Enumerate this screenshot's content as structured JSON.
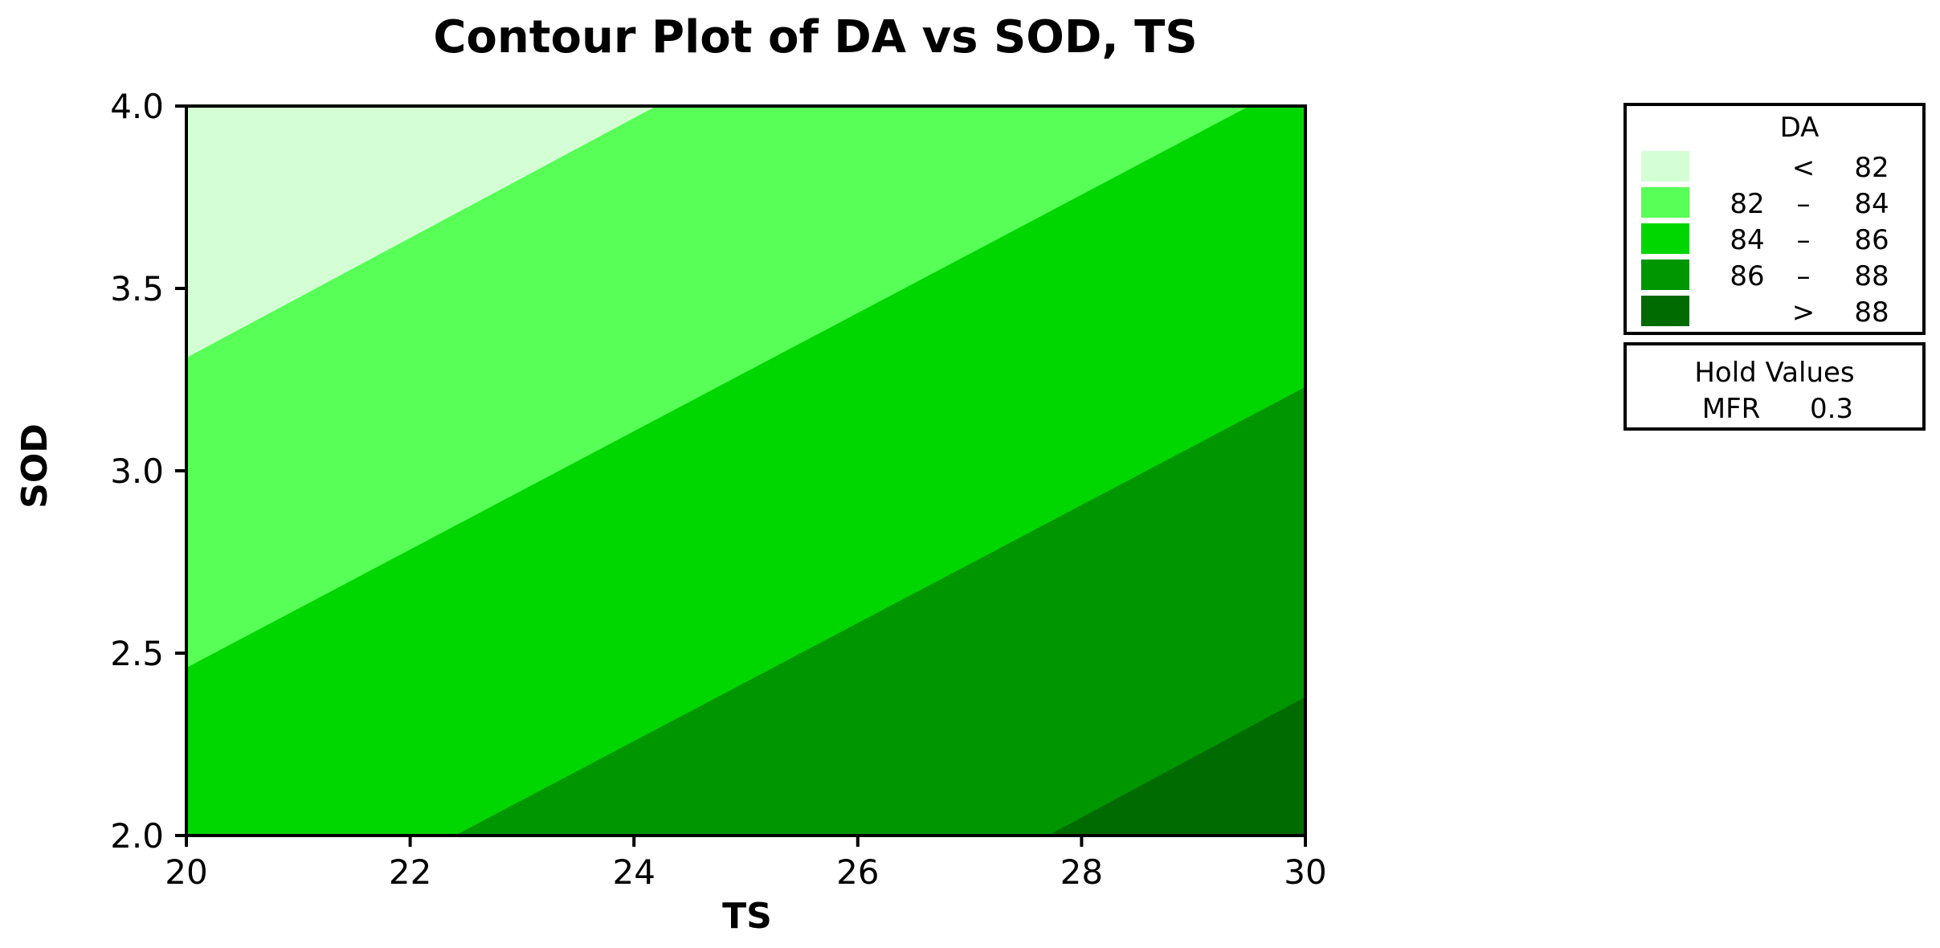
{
  "chart_data": {
    "type": "contour",
    "title": "Contour Plot of DA vs SOD, TS",
    "xlabel": "TS",
    "ylabel": "SOD",
    "xlim": [
      20,
      30
    ],
    "ylim": [
      2.0,
      4.0
    ],
    "x_ticks": [
      "20",
      "22",
      "24",
      "26",
      "28",
      "30"
    ],
    "y_ticks": [
      "2.0",
      "2.5",
      "3.0",
      "3.5",
      "4.0"
    ],
    "legend_placement": "right",
    "legend": {
      "title": "DA",
      "entries": [
        {
          "low": "",
          "op": "<",
          "high": "82",
          "color": "#d4ffd4"
        },
        {
          "low": "82",
          "op": "–",
          "high": "84",
          "color": "#57ff57"
        },
        {
          "low": "84",
          "op": "–",
          "high": "86",
          "color": "#00d600"
        },
        {
          "low": "86",
          "op": "–",
          "high": "88",
          "color": "#009600"
        },
        {
          "low": "",
          "op": ">",
          "high": "88",
          "color": "#006b00"
        }
      ]
    },
    "hold_values": {
      "title": "Hold Values",
      "variable": "MFR",
      "value": "0.3"
    },
    "contour_lines": [
      {
        "level": 82,
        "points": [
          [
            20,
            3.31
          ],
          [
            24.2,
            4.0
          ]
        ]
      },
      {
        "level": 84,
        "points": [
          [
            20,
            2.46
          ],
          [
            29.5,
            4.0
          ]
        ]
      },
      {
        "level": 86,
        "points": [
          [
            22.4,
            2.0
          ],
          [
            30,
            3.23
          ]
        ]
      },
      {
        "level": 88,
        "points": [
          [
            27.7,
            2.0
          ],
          [
            30,
            2.38
          ]
        ]
      }
    ]
  }
}
